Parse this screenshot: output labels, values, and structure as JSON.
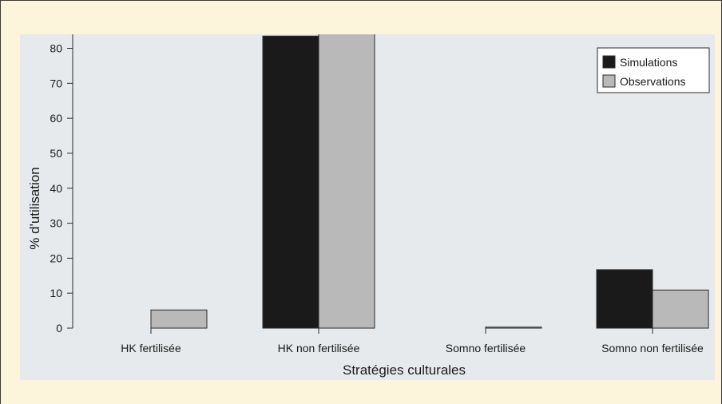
{
  "chart_data": {
    "type": "bar",
    "title": "",
    "xlabel": "Stratégies culturales",
    "ylabel": "% d'utilisation",
    "ylim": [
      0,
      84
    ],
    "yticks": [
      0,
      10,
      20,
      30,
      40,
      50,
      60,
      70,
      80
    ],
    "categories": [
      "HK fertilisée",
      "HK non fertilisée",
      "Somno fertilisée",
      "Somno non fertilisée"
    ],
    "series": [
      {
        "name": "Simulations",
        "color": "#1a1a1a",
        "values": [
          0,
          83.5,
          0,
          16.7
        ]
      },
      {
        "name": "Observations",
        "color": "#b9b9b9",
        "values": [
          5.2,
          84.3,
          0.3,
          10.9
        ]
      }
    ],
    "legend": "top-right",
    "grid": false
  }
}
